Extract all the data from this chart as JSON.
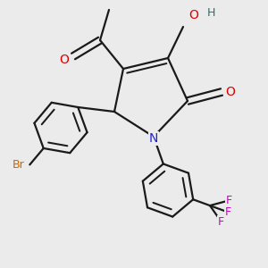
{
  "bg_color": "#ebebeb",
  "bond_color": "#1a1a1a",
  "bond_width": 1.6,
  "atom_colors": {
    "O": "#e00000",
    "N": "#2020e0",
    "Br": "#cc6600",
    "F": "#cc00cc",
    "H_color": "#008080",
    "C": "#1a1a1a"
  },
  "font_size": 8.5
}
